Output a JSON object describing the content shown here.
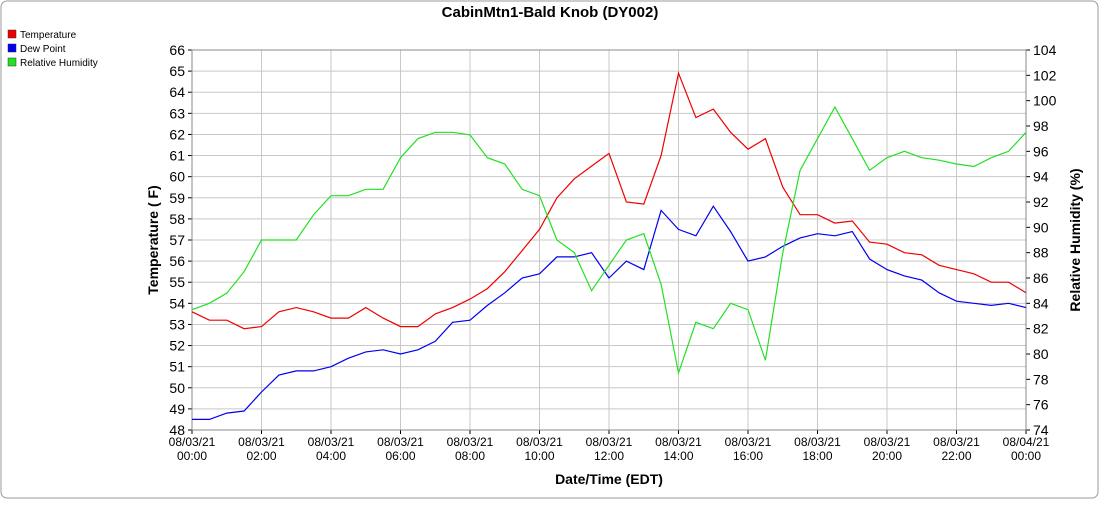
{
  "chart_data": {
    "type": "line",
    "title": "CabinMtn1-Bald Knob (DY002)",
    "xlabel": "Date/Time (EDT)",
    "ylabel": "Temperature ( F)",
    "y2label": "Relative Humidity (%)",
    "x": [
      0,
      0.5,
      1,
      1.5,
      2,
      2.5,
      3,
      3.5,
      4,
      4.5,
      5,
      5.5,
      6,
      6.5,
      7,
      7.5,
      8,
      8.5,
      9,
      9.5,
      10,
      10.5,
      11,
      11.5,
      12,
      12.5,
      13,
      13.5,
      14,
      14.5,
      15,
      15.5,
      16,
      16.5,
      17,
      17.5,
      18,
      18.5,
      19,
      19.5,
      20,
      20.5,
      21,
      21.5,
      22,
      22.5,
      23,
      23.5,
      24
    ],
    "xlim": [
      0,
      24
    ],
    "xticks": [
      {
        "value": 0,
        "label": "08/03/21 00:00"
      },
      {
        "value": 2,
        "label": "08/03/21 02:00"
      },
      {
        "value": 4,
        "label": "08/03/21 04:00"
      },
      {
        "value": 6,
        "label": "08/03/21 06:00"
      },
      {
        "value": 8,
        "label": "08/03/21 08:00"
      },
      {
        "value": 10,
        "label": "08/03/21 10:00"
      },
      {
        "value": 12,
        "label": "08/03/21 12:00"
      },
      {
        "value": 14,
        "label": "08/03/21 14:00"
      },
      {
        "value": 16,
        "label": "08/03/21 16:00"
      },
      {
        "value": 18,
        "label": "08/03/21 18:00"
      },
      {
        "value": 20,
        "label": "08/03/21 20:00"
      },
      {
        "value": 22,
        "label": "08/03/21 22:00"
      },
      {
        "value": 24,
        "label": "08/04/21 00:00"
      }
    ],
    "ylim": [
      48,
      66
    ],
    "yticks": [
      48,
      49,
      50,
      51,
      52,
      53,
      54,
      55,
      56,
      57,
      58,
      59,
      60,
      61,
      62,
      63,
      64,
      65,
      66
    ],
    "y2lim": [
      74,
      104
    ],
    "y2ticks": [
      74,
      76,
      78,
      80,
      82,
      84,
      86,
      88,
      90,
      92,
      94,
      96,
      98,
      100,
      102,
      104
    ],
    "grid": true,
    "series": [
      {
        "name": "Temperature",
        "color": "#ee0000",
        "values": [
          53.6,
          53.2,
          53.2,
          52.8,
          52.9,
          53.6,
          53.8,
          53.6,
          53.3,
          53.3,
          53.8,
          53.3,
          52.9,
          52.9,
          53.5,
          53.8,
          54.2,
          54.7,
          55.5,
          56.5,
          57.5,
          59,
          59.9,
          60.5,
          61.1,
          58.8,
          58.7,
          61.0,
          64.9,
          62.8,
          63.2,
          62.1,
          61.3,
          61.8,
          59.5,
          58.2,
          58.2,
          57.8,
          57.9,
          56.9,
          56.8,
          56.4,
          56.3,
          55.8,
          55.6,
          55.4,
          55.0,
          55.0,
          54.5
        ]
      },
      {
        "name": "Dew Point",
        "color": "#0000ee",
        "values": [
          48.5,
          48.5,
          48.8,
          48.9,
          49.8,
          50.6,
          50.8,
          50.8,
          51.0,
          51.4,
          51.7,
          51.8,
          51.6,
          51.8,
          52.2,
          53.1,
          53.2,
          53.9,
          54.5,
          55.2,
          55.4,
          56.2,
          56.2,
          56.4,
          55.2,
          56.0,
          55.6,
          58.4,
          57.5,
          57.2,
          58.6,
          57.4,
          56.0,
          56.2,
          56.7,
          57.1,
          57.3,
          57.2,
          57.4,
          56.1,
          55.6,
          55.3,
          55.1,
          54.5,
          54.1,
          54.0,
          53.9,
          54.0,
          53.8
        ]
      },
      {
        "name": "Relative Humidity",
        "color": "#22e022",
        "axis": "y2",
        "values": [
          83.5,
          84,
          84.8,
          86.5,
          89,
          89,
          89,
          91,
          92.5,
          92.5,
          93,
          93,
          95.5,
          97,
          97.5,
          97.5,
          97.3,
          95.5,
          95,
          93,
          92.5,
          89,
          88,
          85,
          87,
          89,
          89.5,
          85.5,
          78.5,
          82.5,
          82,
          84,
          83.5,
          79.5,
          88,
          94.5,
          97,
          99.5,
          97,
          94.5,
          95.5,
          96,
          95.5,
          95.3,
          95,
          94.8,
          95.5,
          96,
          97.5
        ]
      }
    ]
  }
}
